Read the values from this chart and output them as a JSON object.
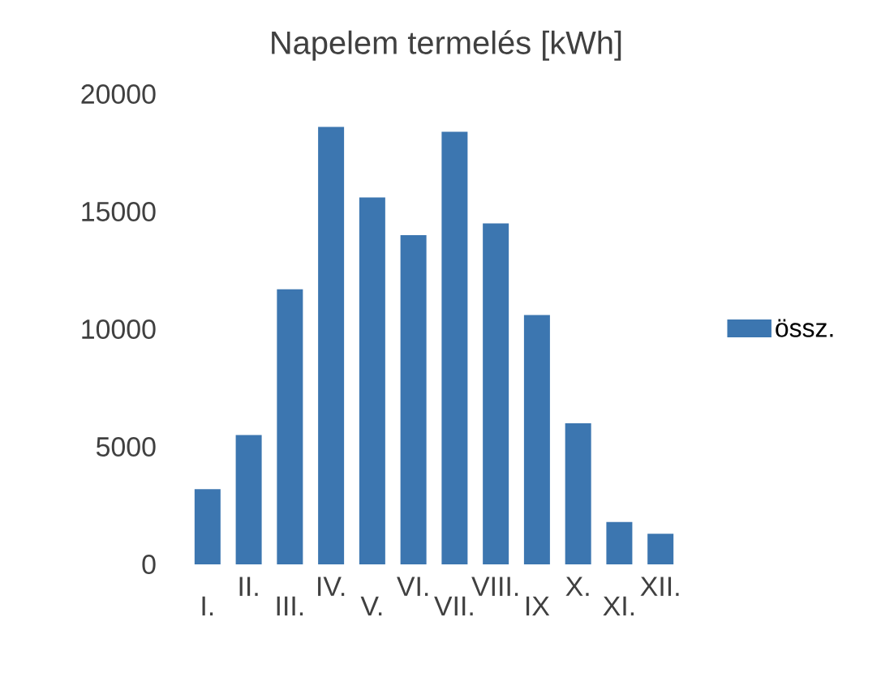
{
  "chart_data": {
    "type": "bar",
    "title": "Napelem termelés [kWh]",
    "categories": [
      "I.",
      "II.",
      "III.",
      "IV.",
      "V.",
      "VI.",
      "VII.",
      "VIII.",
      "IX",
      "X.",
      "XI.",
      "XII."
    ],
    "series": [
      {
        "name": "össz.",
        "color": "#3c76b0",
        "values": [
          3200,
          5500,
          11700,
          18600,
          15600,
          14000,
          18400,
          14500,
          10600,
          6000,
          1800,
          1300
        ]
      }
    ],
    "ylim": [
      0,
      20000
    ],
    "yticks": [
      0,
      5000,
      10000,
      15000,
      20000
    ],
    "grid": false,
    "legend": "right"
  }
}
